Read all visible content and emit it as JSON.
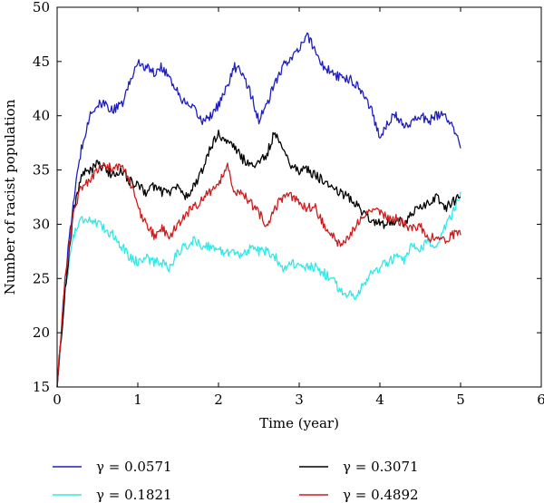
{
  "chart_data": {
    "type": "line",
    "title": "",
    "xlabel": "Time (year)",
    "ylabel": "Number of racist population",
    "xlim": [
      0,
      6
    ],
    "ylim": [
      15,
      50
    ],
    "xticks": [
      0,
      1,
      2,
      3,
      4,
      5,
      6
    ],
    "yticks": [
      15,
      20,
      25,
      30,
      35,
      40,
      45,
      50
    ],
    "grid": false,
    "legend_position": "bottom",
    "series": [
      {
        "name": "γ = 0.0571",
        "color": "#1f1fbf",
        "x": [
          0,
          0.1,
          0.2,
          0.3,
          0.4,
          0.5,
          0.6,
          0.7,
          0.8,
          0.9,
          1.0,
          1.1,
          1.2,
          1.3,
          1.4,
          1.5,
          1.6,
          1.7,
          1.8,
          1.9,
          2.0,
          2.1,
          2.2,
          2.3,
          2.4,
          2.5,
          2.6,
          2.7,
          2.8,
          2.9,
          3.0,
          3.1,
          3.2,
          3.3,
          3.4,
          3.5,
          3.6,
          3.7,
          3.8,
          3.9,
          4.0,
          4.1,
          4.2,
          4.3,
          4.4,
          4.5,
          4.6,
          4.7,
          4.8,
          4.9,
          5.0
        ],
        "y": [
          15,
          25,
          32,
          37,
          40,
          41,
          41,
          40.5,
          41,
          43,
          45,
          44.5,
          44,
          44.5,
          43.5,
          42,
          41,
          40.5,
          39.5,
          40,
          41,
          42.5,
          44.5,
          44,
          42,
          39.5,
          41,
          43,
          44.5,
          45.5,
          46,
          47.5,
          46,
          44.5,
          44,
          43.5,
          43.5,
          43,
          42,
          40.5,
          38,
          39.5,
          40,
          39,
          39.5,
          40,
          39.5,
          40,
          40,
          39,
          37
        ]
      },
      {
        "name": "γ = 0.1821",
        "color": "#33e8e8",
        "x": [
          0,
          0.1,
          0.2,
          0.3,
          0.4,
          0.5,
          0.6,
          0.7,
          0.8,
          0.9,
          1.0,
          1.1,
          1.2,
          1.3,
          1.4,
          1.5,
          1.6,
          1.7,
          1.8,
          1.9,
          2.0,
          2.1,
          2.2,
          2.3,
          2.4,
          2.5,
          2.6,
          2.7,
          2.8,
          2.9,
          3.0,
          3.1,
          3.2,
          3.3,
          3.4,
          3.5,
          3.6,
          3.7,
          3.8,
          3.9,
          4.0,
          4.1,
          4.2,
          4.3,
          4.4,
          4.5,
          4.6,
          4.7,
          4.8,
          4.9,
          5.0
        ],
        "y": [
          15,
          24,
          29,
          30.5,
          30.5,
          30,
          29.5,
          29,
          28,
          27,
          26.5,
          27,
          26.5,
          26.5,
          26,
          27.5,
          28,
          28.5,
          28,
          28,
          27.5,
          27.5,
          27.5,
          27,
          28,
          27.5,
          27.5,
          27,
          26,
          26.5,
          26,
          26,
          26,
          25.5,
          25,
          24,
          23.5,
          23.5,
          24.5,
          25.5,
          26,
          26.5,
          27,
          26.5,
          28,
          27.5,
          28.5,
          28,
          29.5,
          31,
          33
        ]
      },
      {
        "name": "γ = 0.3071",
        "color": "#000000",
        "x": [
          0,
          0.1,
          0.2,
          0.3,
          0.4,
          0.5,
          0.6,
          0.7,
          0.8,
          0.9,
          1.0,
          1.1,
          1.2,
          1.3,
          1.4,
          1.5,
          1.6,
          1.7,
          1.8,
          1.9,
          2.0,
          2.1,
          2.2,
          2.3,
          2.4,
          2.5,
          2.6,
          2.7,
          2.8,
          2.9,
          3.0,
          3.1,
          3.2,
          3.3,
          3.4,
          3.5,
          3.6,
          3.7,
          3.8,
          3.9,
          4.0,
          4.1,
          4.2,
          4.3,
          4.4,
          4.5,
          4.6,
          4.7,
          4.8,
          4.9,
          5.0
        ],
        "y": [
          15,
          24,
          31,
          34.5,
          35,
          35.5,
          35,
          34.5,
          35,
          34,
          33.5,
          33,
          33.5,
          33,
          33,
          33.5,
          32.5,
          33.5,
          35,
          37,
          38.5,
          37.5,
          37,
          36,
          35.5,
          35.5,
          36.5,
          38.5,
          37,
          35.5,
          35,
          35,
          34.5,
          34,
          33.5,
          33,
          32.5,
          32,
          31,
          30.5,
          30,
          30,
          30.5,
          30,
          31,
          31.5,
          32,
          32.5,
          31.5,
          32,
          32.5
        ]
      },
      {
        "name": "γ = 0.4892",
        "color": "#d01c1c",
        "x": [
          0,
          0.1,
          0.2,
          0.3,
          0.4,
          0.5,
          0.6,
          0.7,
          0.8,
          0.9,
          1.0,
          1.1,
          1.2,
          1.3,
          1.4,
          1.5,
          1.6,
          1.7,
          1.8,
          1.9,
          2.0,
          2.1,
          2.2,
          2.3,
          2.4,
          2.5,
          2.6,
          2.7,
          2.8,
          2.9,
          3.0,
          3.1,
          3.2,
          3.3,
          3.4,
          3.5,
          3.6,
          3.7,
          3.8,
          3.9,
          4.0,
          4.1,
          4.2,
          4.3,
          4.4,
          4.5,
          4.6,
          4.7,
          4.8,
          4.9,
          5.0
        ],
        "y": [
          15,
          25,
          31,
          33.5,
          34,
          35,
          35.5,
          35,
          35.5,
          34,
          31.5,
          30,
          29,
          29.5,
          29,
          30,
          31,
          31.5,
          32.5,
          33,
          33.5,
          35.5,
          33,
          33,
          32,
          31,
          30,
          31.5,
          32.5,
          32.5,
          32,
          31.5,
          31.5,
          30,
          29,
          28,
          28.5,
          30,
          31,
          31.5,
          31,
          30.5,
          30.5,
          30,
          29.5,
          30,
          28.5,
          29,
          28.5,
          29,
          29
        ]
      }
    ]
  }
}
